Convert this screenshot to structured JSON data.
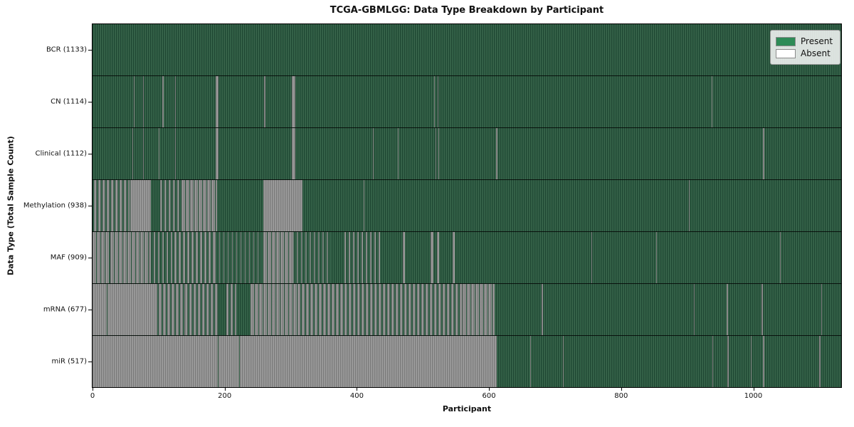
{
  "title": "TCGA-GBMLGG: Data Type Breakdown by Participant",
  "x_axis": {
    "label": "Participant",
    "ticks": [
      "0",
      "200",
      "400",
      "600",
      "800",
      "1000"
    ],
    "tick_values": [
      0,
      200,
      400,
      600,
      800,
      1000
    ],
    "max": 1133
  },
  "y_axis": {
    "label": "Data Type (Total Sample Count)"
  },
  "legend": {
    "entries": [
      {
        "label": "Present",
        "state": "present"
      },
      {
        "label": "Absent",
        "state": "absent"
      }
    ]
  },
  "colors": {
    "present_legend": "#2e8b57",
    "absent_legend": "#ffffff",
    "present_dark": "#1f4733",
    "present_mid": "#2d5b42",
    "present_light": "#3a664c",
    "absent_dark": "#7b7b7b",
    "absent_mid": "#909090",
    "absent_light": "#9e9e9e"
  },
  "chart_data": {
    "type": "heatmap",
    "title": "TCGA-GBMLGG: Data Type Breakdown by Participant",
    "xlabel": "Participant",
    "ylabel": "Data Type (Total Sample Count)",
    "x_range": [
      0,
      1133
    ],
    "x_ticks": [
      0,
      200,
      400,
      600,
      800,
      1000
    ],
    "legend_entries": [
      "Present",
      "Absent"
    ],
    "legend_position": "upper right",
    "grid": false,
    "note": "Each row is a binary present/absent strip across 1133 participants; 'mixed' marks are dense alternating runs with f = absent fraction.",
    "rows": [
      {
        "label": "BCR (1133)",
        "name": "BCR",
        "present_count": 1133,
        "base": "present",
        "marks": []
      },
      {
        "label": "CN (1114)",
        "name": "CN",
        "present_count": 1114,
        "base": "present",
        "marks": [
          {
            "s": 62,
            "e": 63.5,
            "st": "absent"
          },
          {
            "s": 76,
            "e": 77.5,
            "st": "absent"
          },
          {
            "s": 106,
            "e": 107.5,
            "st": "absent"
          },
          {
            "s": 125,
            "e": 126.5,
            "st": "absent"
          },
          {
            "s": 186,
            "e": 190.5,
            "st": "absent"
          },
          {
            "s": 260,
            "e": 261.5,
            "st": "absent"
          },
          {
            "s": 302,
            "e": 306.5,
            "st": "absent"
          },
          {
            "s": 517,
            "e": 518.5,
            "st": "absent"
          },
          {
            "s": 522,
            "e": 523.5,
            "st": "absent"
          },
          {
            "s": 937,
            "e": 938.5,
            "st": "absent"
          }
        ]
      },
      {
        "label": "Clinical (1112)",
        "name": "Clinical",
        "present_count": 1112,
        "base": "present",
        "marks": [
          {
            "s": 60,
            "e": 61.5,
            "st": "absent"
          },
          {
            "s": 76,
            "e": 77.5,
            "st": "absent"
          },
          {
            "s": 100,
            "e": 101.5,
            "st": "absent"
          },
          {
            "s": 125,
            "e": 126.5,
            "st": "absent"
          },
          {
            "s": 186,
            "e": 190.5,
            "st": "absent"
          },
          {
            "s": 302,
            "e": 306.5,
            "st": "absent"
          },
          {
            "s": 424,
            "e": 425.5,
            "st": "absent"
          },
          {
            "s": 462,
            "e": 463.5,
            "st": "absent"
          },
          {
            "s": 519,
            "e": 520.5,
            "st": "absent"
          },
          {
            "s": 523,
            "e": 524.5,
            "st": "absent"
          },
          {
            "s": 611,
            "e": 612.5,
            "st": "absent"
          },
          {
            "s": 1015,
            "e": 1017,
            "st": "absent"
          }
        ]
      },
      {
        "label": "Methylation (938)",
        "name": "Methylation",
        "present_count": 938,
        "base": "present",
        "marks": [
          {
            "s": 2,
            "e": 56,
            "st": "mixed",
            "f": 0.55
          },
          {
            "s": 57,
            "e": 88,
            "st": "absent"
          },
          {
            "s": 102,
            "e": 135,
            "st": "mixed",
            "f": 0.45
          },
          {
            "s": 135,
            "e": 189,
            "st": "mixed",
            "f": 0.8
          },
          {
            "s": 258,
            "e": 318,
            "st": "absent"
          },
          {
            "s": 410,
            "e": 411.5,
            "st": "absent"
          },
          {
            "s": 902,
            "e": 903.5,
            "st": "absent"
          }
        ]
      },
      {
        "label": "MAF (909)",
        "name": "MAF",
        "present_count": 909,
        "base": "present",
        "marks": [
          {
            "s": 0,
            "e": 25,
            "st": "mixed",
            "f": 0.8
          },
          {
            "s": 27,
            "e": 86,
            "st": "mixed",
            "f": 0.85
          },
          {
            "s": 86,
            "e": 124,
            "st": "mixed",
            "f": 0.3
          },
          {
            "s": 124,
            "e": 185,
            "st": "mixed",
            "f": 0.5
          },
          {
            "s": 185,
            "e": 256,
            "st": "mixed",
            "f": 0.15
          },
          {
            "s": 258,
            "e": 303,
            "st": "mixed",
            "f": 0.8
          },
          {
            "s": 303,
            "e": 360,
            "st": "mixed",
            "f": 0.25
          },
          {
            "s": 381,
            "e": 435,
            "st": "mixed",
            "f": 0.35
          },
          {
            "s": 470,
            "e": 473,
            "st": "absent"
          },
          {
            "s": 512,
            "e": 516,
            "st": "absent"
          },
          {
            "s": 521,
            "e": 524,
            "st": "absent"
          },
          {
            "s": 545,
            "e": 548,
            "st": "absent"
          },
          {
            "s": 755,
            "e": 756.5,
            "st": "absent"
          },
          {
            "s": 853,
            "e": 854.5,
            "st": "absent"
          },
          {
            "s": 1040,
            "e": 1041.5,
            "st": "absent"
          }
        ]
      },
      {
        "label": "mRNA (677)",
        "name": "mRNA",
        "present_count": 677,
        "base": "present",
        "marks": [
          {
            "s": 0,
            "e": 21,
            "st": "absent"
          },
          {
            "s": 23,
            "e": 94,
            "st": "absent"
          },
          {
            "s": 94,
            "e": 140,
            "st": "mixed",
            "f": 0.65
          },
          {
            "s": 140,
            "e": 190,
            "st": "mixed",
            "f": 0.55
          },
          {
            "s": 202,
            "e": 218,
            "st": "mixed",
            "f": 0.5
          },
          {
            "s": 239,
            "e": 310,
            "st": "mixed",
            "f": 0.8
          },
          {
            "s": 310,
            "e": 381,
            "st": "mixed",
            "f": 0.7
          },
          {
            "s": 381,
            "e": 560,
            "st": "mixed",
            "f": 0.55
          },
          {
            "s": 560,
            "e": 608,
            "st": "mixed",
            "f": 0.85
          },
          {
            "s": 680,
            "e": 681.5,
            "st": "absent"
          },
          {
            "s": 910,
            "e": 911.5,
            "st": "absent"
          },
          {
            "s": 960,
            "e": 961.5,
            "st": "absent"
          },
          {
            "s": 1012,
            "e": 1015,
            "st": "absent"
          },
          {
            "s": 1103,
            "e": 1104.5,
            "st": "absent"
          }
        ]
      },
      {
        "label": "miR (517)",
        "name": "miR",
        "present_count": 517,
        "base": "present",
        "marks": [
          {
            "s": 0,
            "e": 189.5,
            "st": "absent"
          },
          {
            "s": 191,
            "e": 221.5,
            "st": "absent"
          },
          {
            "s": 223,
            "e": 612,
            "st": "absent"
          },
          {
            "s": 662,
            "e": 663.5,
            "st": "absent"
          },
          {
            "s": 712,
            "e": 713.5,
            "st": "absent"
          },
          {
            "s": 938,
            "e": 939.5,
            "st": "absent"
          },
          {
            "s": 961,
            "e": 962.5,
            "st": "absent"
          },
          {
            "s": 996,
            "e": 997.5,
            "st": "absent"
          },
          {
            "s": 1014,
            "e": 1016.5,
            "st": "absent"
          },
          {
            "s": 1100,
            "e": 1101.5,
            "st": "absent"
          }
        ]
      }
    ]
  }
}
